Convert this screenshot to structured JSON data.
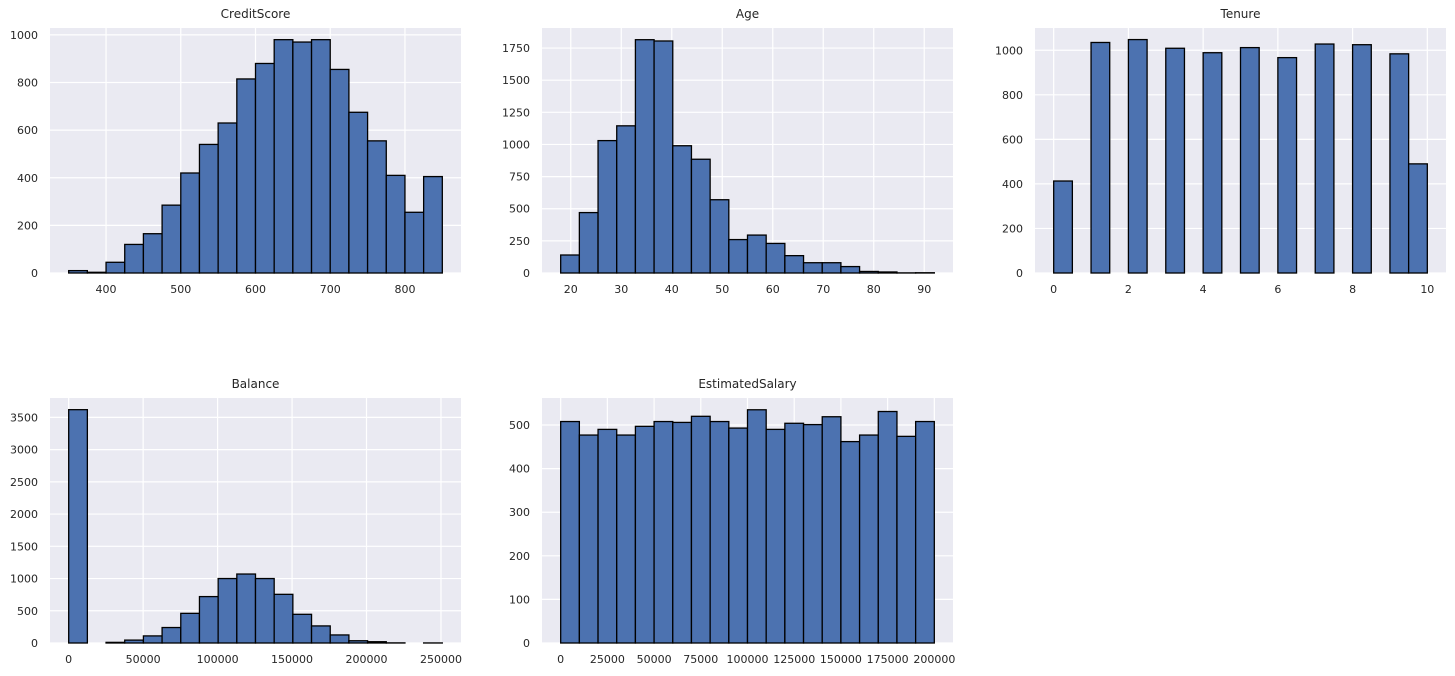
{
  "figure": {
    "background": "#ffffff",
    "plot_bg": "#eaeaf2",
    "grid_color": "#ffffff",
    "bar_fill": "#4c72b0",
    "bar_edge": "#000000",
    "text_color": "#262626"
  },
  "chart_data": [
    {
      "type": "bar",
      "subtype": "histogram",
      "title": "CreditScore",
      "bin_start": 350,
      "bin_width": 25,
      "counts": [
        10,
        3,
        45,
        120,
        165,
        285,
        420,
        540,
        630,
        815,
        880,
        980,
        970,
        980,
        855,
        675,
        555,
        410,
        255,
        405
      ],
      "xticks": [
        400,
        500,
        600,
        700,
        800
      ],
      "yticks": [
        0,
        200,
        400,
        600,
        800,
        1000
      ],
      "xlim": [
        325,
        875
      ],
      "ylim": [
        0,
        1029
      ],
      "grid": true,
      "legend": null
    },
    {
      "type": "bar",
      "subtype": "histogram",
      "title": "Age",
      "bin_start": 18,
      "bin_width": 3.7,
      "counts": [
        140,
        470,
        1030,
        1145,
        1815,
        1805,
        990,
        885,
        570,
        260,
        295,
        230,
        135,
        80,
        80,
        50,
        12,
        8,
        1,
        2
      ],
      "xticks": [
        20,
        30,
        40,
        50,
        60,
        70,
        80,
        90
      ],
      "yticks": [
        0,
        250,
        500,
        750,
        1000,
        1250,
        1500,
        1750
      ],
      "xlim": [
        14.3,
        95.7
      ],
      "ylim": [
        0,
        1906
      ],
      "grid": true,
      "legend": null
    },
    {
      "type": "bar",
      "subtype": "histogram",
      "title": "Tenure",
      "bin_start": 0,
      "bin_width": 0.5,
      "counts": [
        413,
        0,
        1035,
        0,
        1048,
        0,
        1009,
        0,
        989,
        0,
        1012,
        0,
        967,
        0,
        1028,
        0,
        1025,
        0,
        984,
        490
      ],
      "xticks": [
        0,
        2,
        4,
        6,
        8,
        10
      ],
      "yticks": [
        0,
        200,
        400,
        600,
        800,
        1000
      ],
      "xlim": [
        -0.5,
        10.5
      ],
      "ylim": [
        0,
        1100
      ],
      "grid": true,
      "legend": null
    },
    {
      "type": "bar",
      "subtype": "histogram",
      "title": "Balance",
      "bin_start": 0,
      "bin_width": 12544.9,
      "counts": [
        3620,
        0,
        10,
        45,
        110,
        240,
        460,
        720,
        1000,
        1070,
        1000,
        755,
        445,
        265,
        125,
        35,
        20,
        2,
        0,
        1
      ],
      "xticks": [
        0,
        50000,
        100000,
        150000,
        200000,
        250000
      ],
      "yticks": [
        0,
        500,
        1000,
        1500,
        2000,
        2500,
        3000,
        3500
      ],
      "xlim": [
        -12545,
        263443
      ],
      "ylim": [
        0,
        3801
      ],
      "grid": true,
      "legend": null
    },
    {
      "type": "bar",
      "subtype": "histogram",
      "title": "EstimatedSalary",
      "bin_start": 11.58,
      "bin_width": 9999.05,
      "counts": [
        508,
        477,
        490,
        477,
        497,
        508,
        506,
        520,
        508,
        493,
        535,
        490,
        504,
        501,
        519,
        462,
        477,
        531,
        474,
        508
      ],
      "xticks": [
        0,
        25000,
        50000,
        75000,
        100000,
        125000,
        150000,
        175000,
        200000
      ],
      "yticks": [
        0,
        100,
        200,
        300,
        400,
        500
      ],
      "xlim": [
        -9988,
        209992
      ],
      "ylim": [
        0,
        562
      ],
      "grid": true,
      "legend": null
    }
  ]
}
